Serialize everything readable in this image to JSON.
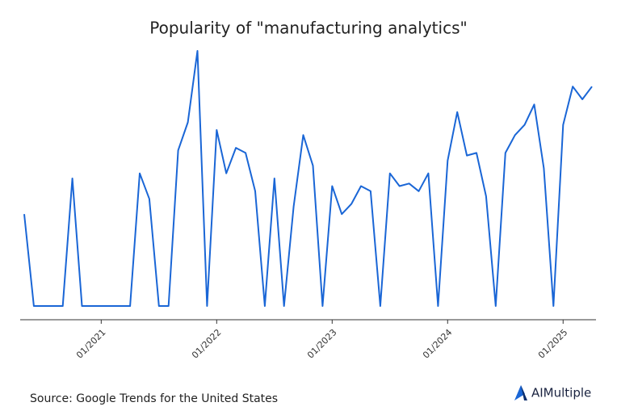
{
  "chart_data": {
    "type": "line",
    "title": "Popularity of \"manufacturing analytics\"",
    "source": "Source: Google Trends for the United States",
    "brand": "AIMultiple",
    "color": "#1a66d6",
    "x": [
      "05/2020",
      "06/2020",
      "07/2020",
      "08/2020",
      "09/2020",
      "10/2020",
      "11/2020",
      "12/2020",
      "01/2021",
      "02/2021",
      "03/2021",
      "04/2021",
      "05/2021",
      "06/2021",
      "07/2021",
      "08/2021",
      "09/2021",
      "10/2021",
      "11/2021",
      "12/2021",
      "01/2022",
      "02/2022",
      "03/2022",
      "04/2022",
      "05/2022",
      "06/2022",
      "07/2022",
      "08/2022",
      "09/2022",
      "10/2022",
      "11/2022",
      "12/2022",
      "01/2023",
      "02/2023",
      "03/2023",
      "04/2023",
      "05/2023",
      "06/2023",
      "07/2023",
      "08/2023",
      "09/2023",
      "10/2023",
      "11/2023",
      "12/2023",
      "01/2024",
      "02/2024",
      "03/2024",
      "04/2024",
      "05/2024",
      "06/2024",
      "07/2024",
      "08/2024",
      "09/2024",
      "10/2024",
      "11/2024",
      "12/2024",
      "01/2025",
      "02/2025",
      "03/2025",
      "04/2025"
    ],
    "values": [
      36,
      0,
      0,
      0,
      0,
      50,
      0,
      0,
      0,
      0,
      0,
      0,
      52,
      42,
      0,
      0,
      61,
      72,
      100,
      0,
      69,
      52,
      62,
      60,
      45,
      0,
      50,
      0,
      39,
      67,
      55,
      0,
      47,
      36,
      40,
      47,
      45,
      0,
      52,
      47,
      48,
      45,
      52,
      0,
      57,
      76,
      59,
      60,
      43,
      0,
      60,
      67,
      71,
      79,
      54,
      0,
      71,
      86,
      81,
      86
    ],
    "ylim": [
      0,
      100
    ],
    "xticks": [
      "01/2021",
      "01/2022",
      "01/2023",
      "01/2024",
      "01/2025"
    ]
  }
}
